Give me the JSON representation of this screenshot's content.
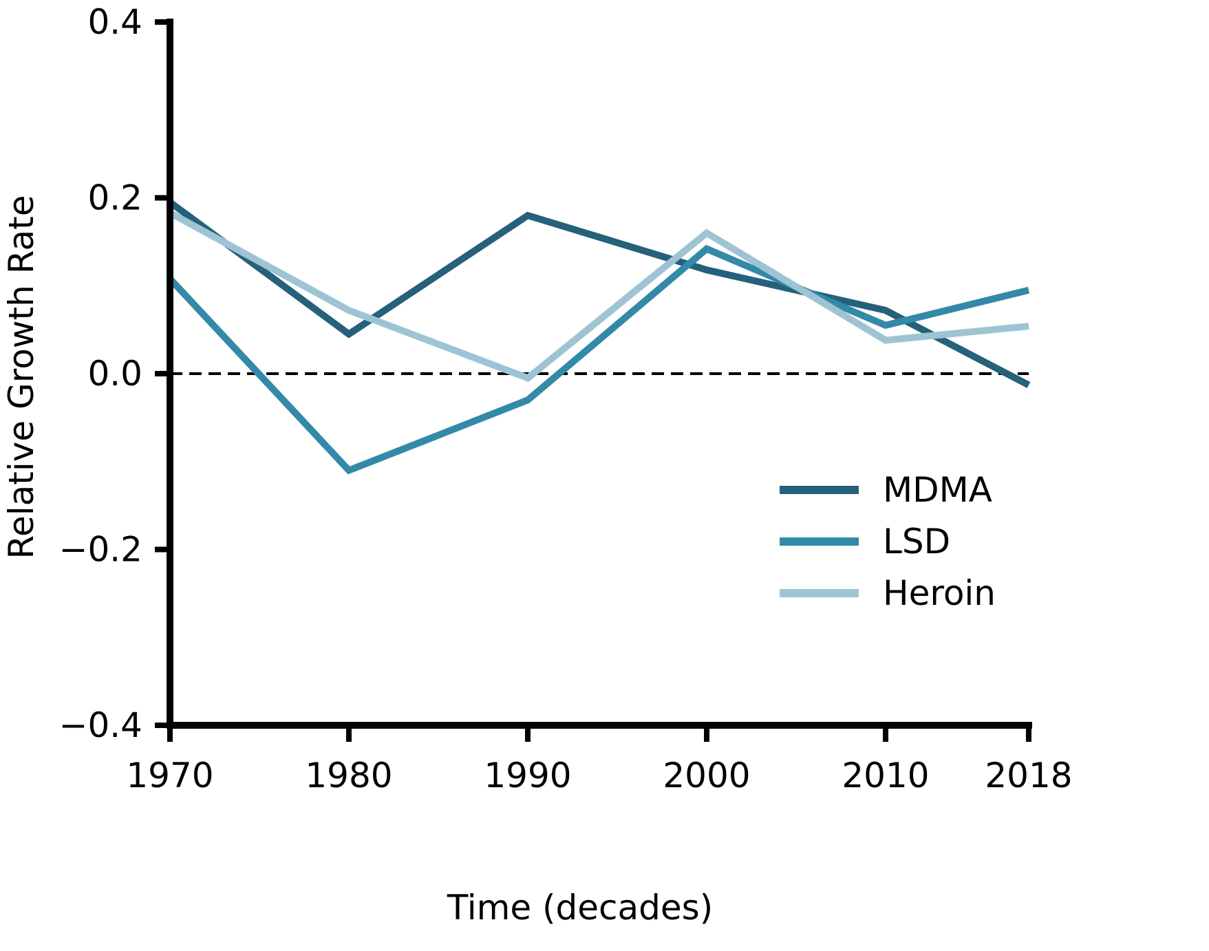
{
  "chart_data": {
    "type": "line",
    "xlabel": "Time (decades)",
    "ylabel": "Relative Growth Rate",
    "x": [
      1970,
      1980,
      1990,
      2000,
      2010,
      2018
    ],
    "x_tick_labels": [
      "1970",
      "1980",
      "1990",
      "2000",
      "2010",
      "2018"
    ],
    "xlim": [
      1970,
      2018
    ],
    "ylim": [
      -0.4,
      0.4
    ],
    "y_ticks": [
      -0.4,
      -0.2,
      0.0,
      0.2,
      0.4
    ],
    "y_tick_labels": [
      "−0.4",
      "−0.2",
      "0.0",
      "0.2",
      "0.4"
    ],
    "reference_line": {
      "y": 0.0,
      "style": "dashed",
      "color": "#000000"
    },
    "grid": false,
    "legend_position": "lower-right",
    "series": [
      {
        "name": "MDMA",
        "color": "#25617a",
        "values": [
          0.195,
          0.045,
          0.18,
          0.118,
          0.072,
          -0.013
        ]
      },
      {
        "name": "LSD",
        "color": "#3389a8",
        "values": [
          0.108,
          -0.11,
          -0.03,
          0.142,
          0.055,
          0.095
        ]
      },
      {
        "name": "Heroin",
        "color": "#9ec4d4",
        "values": [
          0.183,
          0.072,
          -0.005,
          0.16,
          0.038,
          0.054
        ]
      }
    ]
  }
}
